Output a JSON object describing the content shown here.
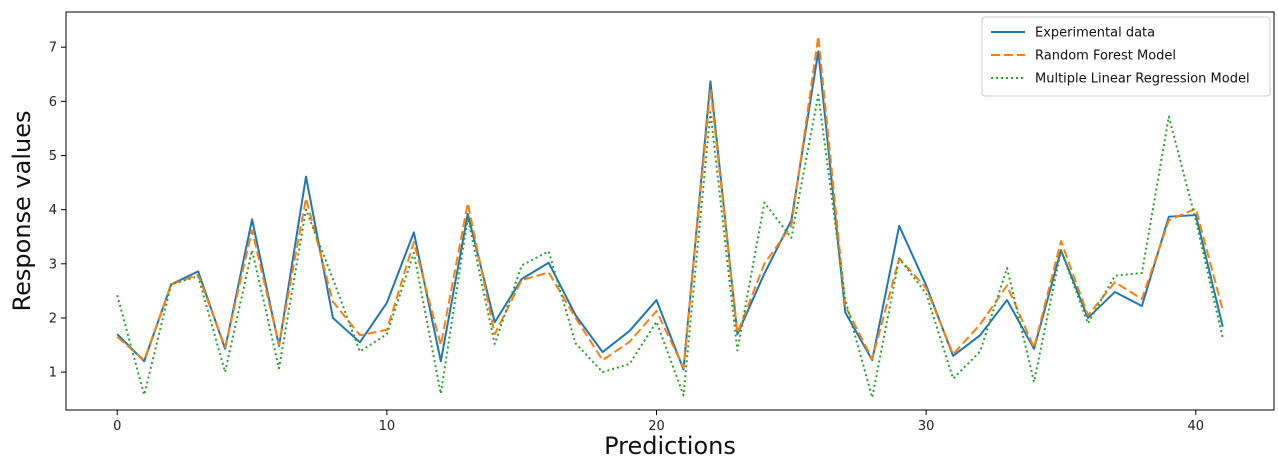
{
  "chart_data": {
    "type": "line",
    "xlabel": "Predictions",
    "ylabel": "Response values",
    "xlim": [
      -1.9,
      42.9
    ],
    "ylim": [
      0.3,
      7.65
    ],
    "xticks": [
      0,
      10,
      20,
      30,
      40
    ],
    "yticks": [
      1,
      2,
      3,
      4,
      5,
      6,
      7
    ],
    "grid": false,
    "legend": "top-right",
    "x": [
      0,
      1,
      2,
      3,
      4,
      5,
      6,
      7,
      8,
      9,
      10,
      11,
      12,
      13,
      14,
      15,
      16,
      17,
      18,
      19,
      20,
      21,
      22,
      23,
      24,
      25,
      26,
      27,
      28,
      29,
      30,
      31,
      32,
      33,
      34,
      35,
      36,
      37,
      38,
      39,
      40,
      41
    ],
    "series": [
      {
        "name": "Experimental data",
        "color": "#1f77b4",
        "style": "solid",
        "values": [
          1.7,
          1.2,
          2.62,
          2.86,
          1.43,
          3.82,
          1.48,
          4.61,
          2.0,
          1.55,
          2.28,
          3.58,
          1.2,
          3.92,
          1.92,
          2.72,
          3.02,
          2.05,
          1.37,
          1.76,
          2.33,
          1.05,
          6.37,
          1.7,
          2.82,
          3.8,
          6.92,
          2.1,
          1.22,
          3.7,
          2.6,
          1.3,
          1.68,
          2.33,
          1.43,
          3.25,
          2.0,
          2.48,
          2.22,
          3.87,
          3.9,
          1.84
        ]
      },
      {
        "name": "Random Forest Model",
        "color": "#ff7f0e",
        "style": "dashed",
        "values": [
          1.65,
          1.22,
          2.62,
          2.8,
          1.46,
          3.62,
          1.5,
          4.21,
          2.3,
          1.68,
          1.78,
          3.4,
          1.5,
          4.12,
          1.7,
          2.7,
          2.84,
          2.0,
          1.22,
          1.56,
          2.13,
          1.08,
          6.23,
          1.72,
          3.0,
          3.7,
          7.2,
          2.22,
          1.24,
          3.1,
          2.55,
          1.33,
          1.88,
          2.6,
          1.45,
          3.42,
          2.05,
          2.66,
          2.35,
          3.8,
          4.02,
          2.14
        ]
      },
      {
        "name": "Multiple Linear Regression Model",
        "color": "#2ca02c",
        "style": "dotted",
        "values": [
          2.42,
          0.58,
          2.62,
          2.77,
          1.0,
          3.25,
          1.07,
          4.0,
          2.72,
          1.38,
          1.7,
          3.2,
          0.6,
          3.85,
          1.52,
          2.97,
          3.23,
          1.53,
          1.0,
          1.15,
          1.93,
          0.57,
          5.8,
          1.4,
          4.13,
          3.48,
          6.12,
          2.33,
          0.53,
          3.1,
          2.45,
          0.88,
          1.38,
          2.92,
          0.82,
          3.25,
          1.9,
          2.78,
          2.83,
          5.72,
          3.8,
          1.63
        ]
      }
    ]
  }
}
